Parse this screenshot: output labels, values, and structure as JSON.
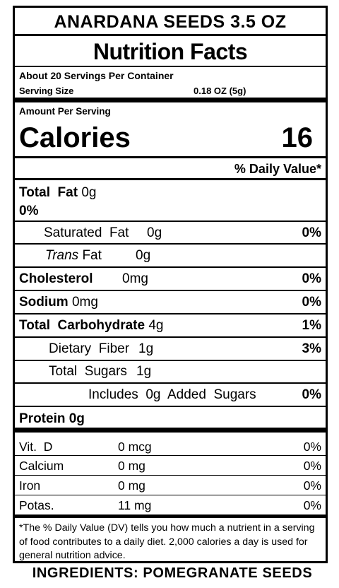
{
  "product_title": "ANARDANA SEEDS 3.5 OZ",
  "panel_title": "Nutrition Facts",
  "servings_per_container": "About 20 Servings Per Container",
  "serving_size_label": "Serving Size",
  "serving_size_value": "0.18 OZ (5g)",
  "amount_per_serving": "Amount  Per Serving",
  "calories_label": "Calories",
  "calories_value": "16",
  "daily_value_header": "% Daily Value*",
  "nutrients": {
    "total_fat": {
      "label": "Total  Fat",
      "amount": "0g",
      "dv": "0%"
    },
    "saturated_fat": {
      "label": "Saturated  Fat",
      "amount": "0g",
      "dv": "0%"
    },
    "trans_fat": {
      "label_italic": "Trans",
      "label": "Fat",
      "amount": "0g"
    },
    "cholesterol": {
      "label": "Cholesterol",
      "amount": "0mg",
      "dv": "0%"
    },
    "sodium": {
      "label": "Sodium",
      "amount": "0mg",
      "dv": "0%"
    },
    "total_carbohydrate": {
      "label": "Total  Carbohydrate",
      "amount": "4g",
      "dv": "1%"
    },
    "dietary_fiber": {
      "label": "Dietary  Fiber",
      "amount": "1g",
      "dv": "3%"
    },
    "total_sugars": {
      "label": "Total  Sugars",
      "amount": "1g"
    },
    "added_sugars": {
      "label": "Includes  0g  Added  Sugars",
      "dv": "0%"
    },
    "protein": {
      "label": "Protein",
      "amount": "0g"
    }
  },
  "vitamins": [
    {
      "name": "Vit.  D",
      "amount": "0 mcg",
      "dv": "0%"
    },
    {
      "name": "Calcium",
      "amount": "0 mg",
      "dv": "0%"
    },
    {
      "name": "Iron",
      "amount": "0 mg",
      "dv": "0%"
    },
    {
      "name": "Potas.",
      "amount": "11 mg",
      "dv": "0%"
    }
  ],
  "footnote": "*The % Daily Value (DV) tells you how much a nutrient in a serving of food contributes to a daily diet. 2,000 calories a day is used for general nutrition advice.",
  "ingredients": "INGREDIENTS: POMEGRANATE SEEDS"
}
